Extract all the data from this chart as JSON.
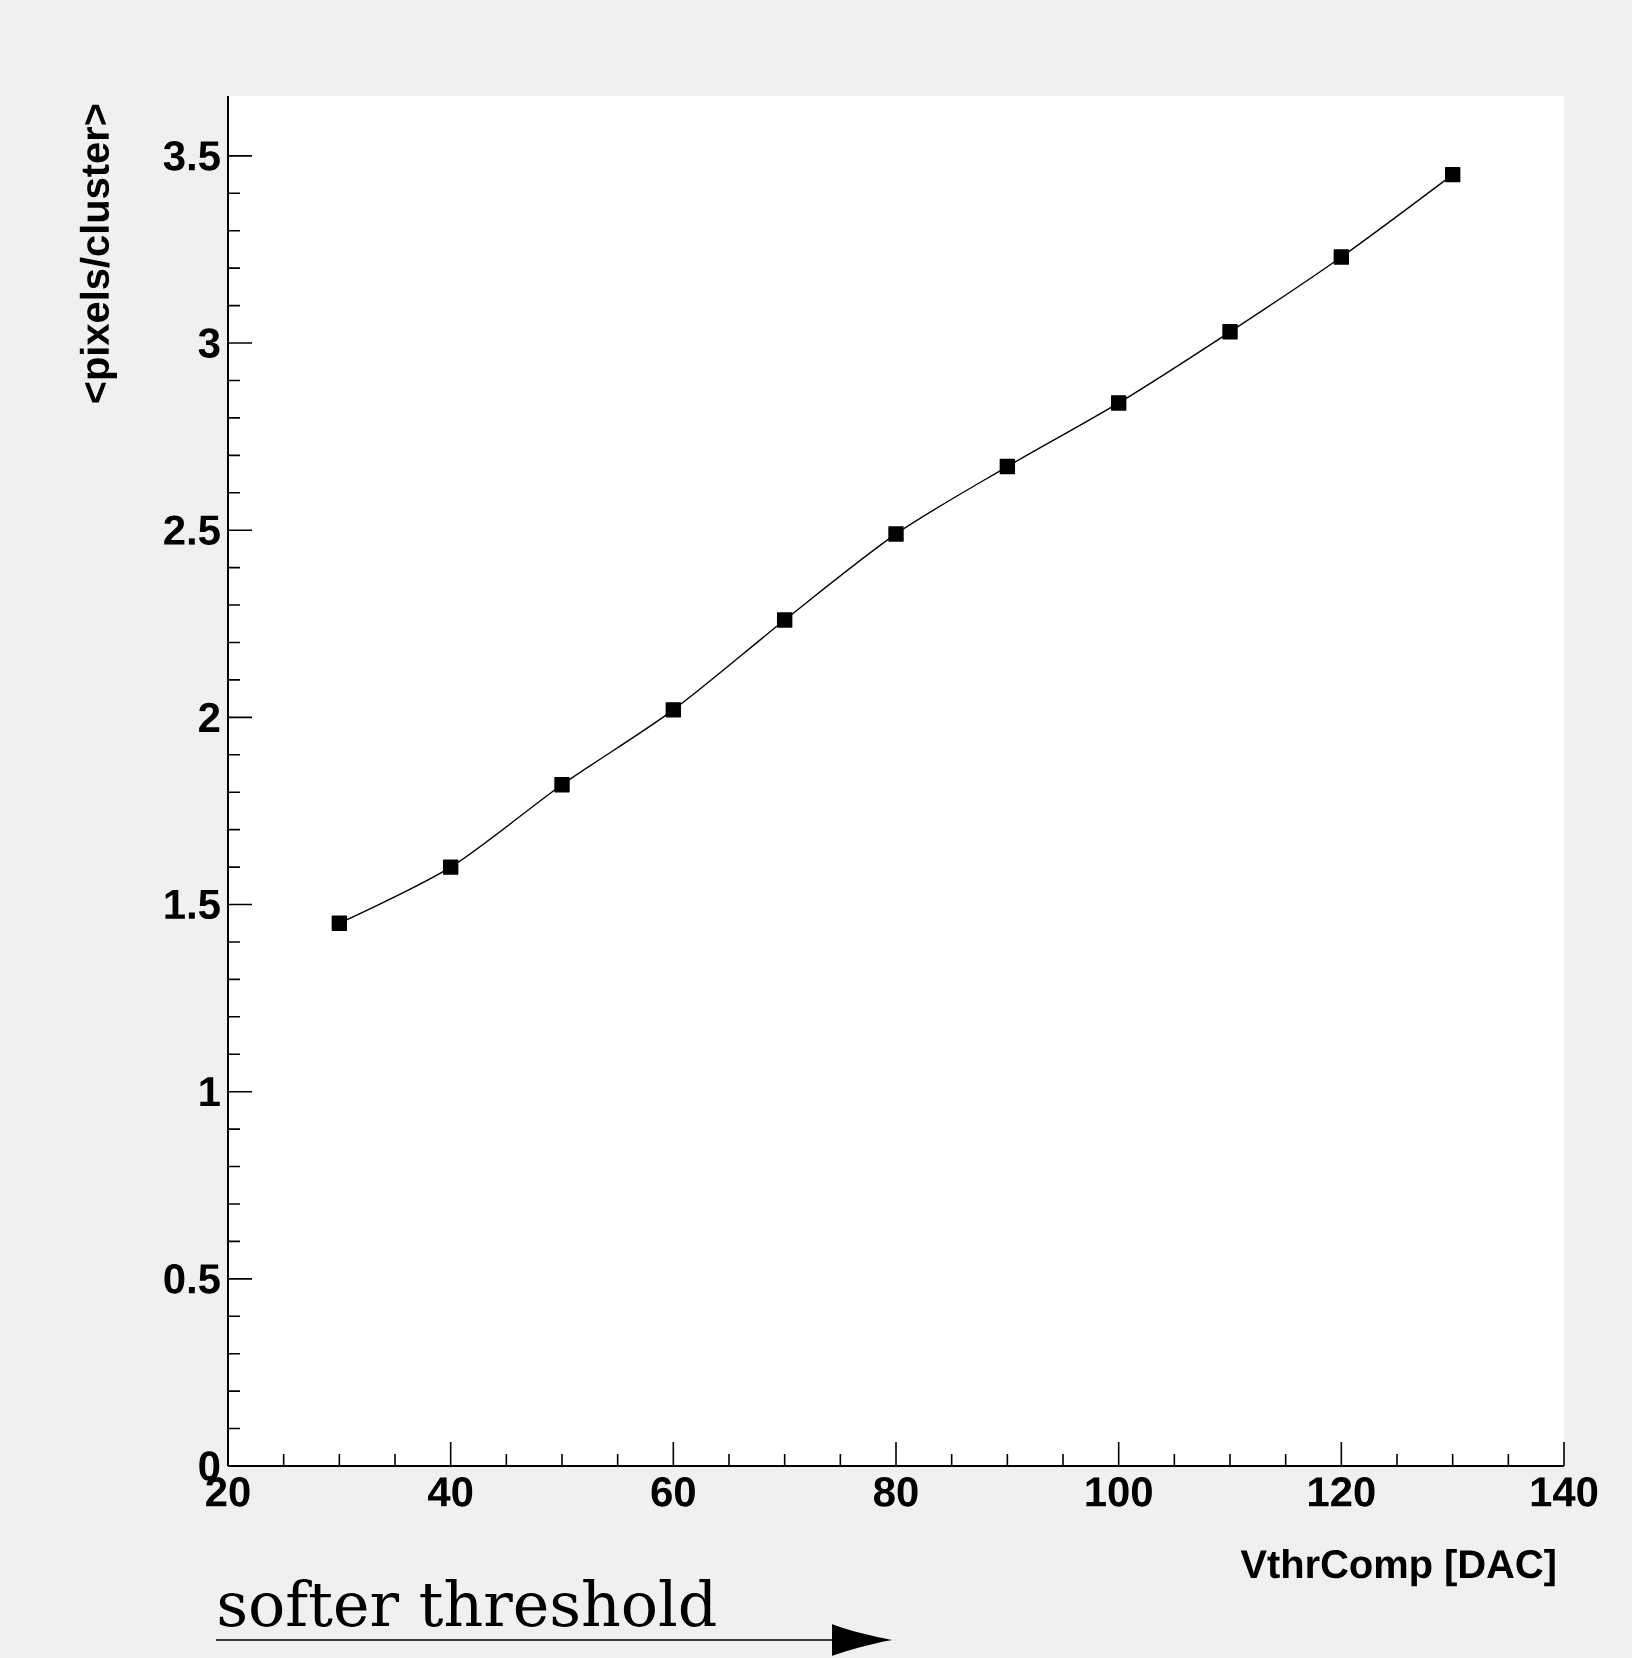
{
  "chart_data": {
    "type": "line",
    "xlabel": "VthrComp [DAC]",
    "ylabel": "<pixels/cluster>",
    "x": [
      30,
      40,
      50,
      60,
      70,
      80,
      90,
      100,
      110,
      120,
      130
    ],
    "series": [
      {
        "color": "#000000",
        "values": [
          1.45,
          1.6,
          1.82,
          2.02,
          2.26,
          2.49,
          2.67,
          2.84,
          3.03,
          3.23,
          3.45
        ]
      }
    ],
    "xlim": [
      20,
      140
    ],
    "ylim": [
      0,
      3.66
    ],
    "xticks": [
      20,
      40,
      60,
      80,
      100,
      120,
      140
    ],
    "yticks": [
      0,
      0.5,
      1,
      1.5,
      2,
      2.5,
      3,
      3.5
    ],
    "marker": "square",
    "line_style": "solid",
    "grid": false,
    "annotations": [
      "softer threshold"
    ]
  }
}
